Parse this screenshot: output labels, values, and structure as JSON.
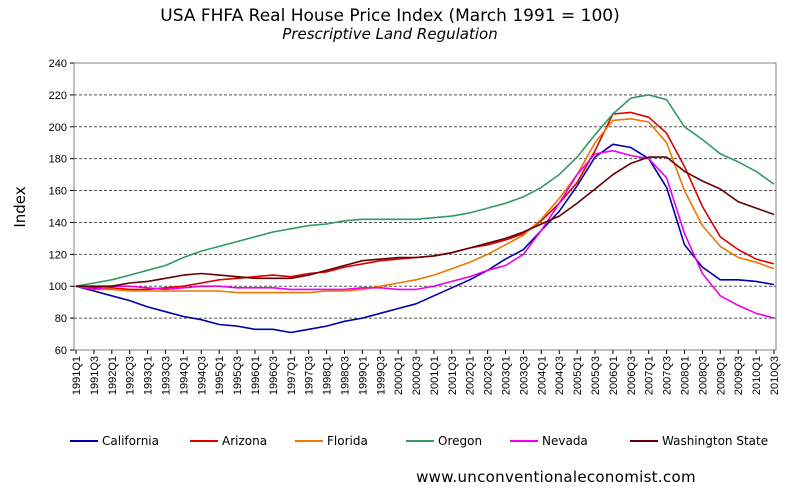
{
  "website": "www.unconventionaleconomist.com",
  "chart_data": {
    "type": "line",
    "title": "USA FHFA Real House Price Index (March 1991 = 100)",
    "subtitle": "Prescriptive Land Regulation",
    "xlabel": "",
    "ylabel": "Index",
    "ylim": [
      60,
      240
    ],
    "yticks": [
      60,
      80,
      100,
      120,
      140,
      160,
      180,
      200,
      220,
      240
    ],
    "grid": "horizontal dashed",
    "legend_position": "bottom",
    "x": [
      "1991Q1",
      "1991Q3",
      "1992Q1",
      "1992Q3",
      "1993Q1",
      "1993Q3",
      "1994Q1",
      "1994Q3",
      "1995Q1",
      "1995Q3",
      "1996Q1",
      "1996Q3",
      "1997Q1",
      "1997Q3",
      "1998Q1",
      "1998Q3",
      "1999Q1",
      "1999Q3",
      "2000Q1",
      "2000Q3",
      "2001Q1",
      "2001Q3",
      "2002Q1",
      "2002Q3",
      "2003Q1",
      "2003Q3",
      "2004Q1",
      "2004Q3",
      "2005Q1",
      "2005Q3",
      "2006Q1",
      "2006Q3",
      "2007Q1",
      "2007Q3",
      "2008Q1",
      "2008Q3",
      "2009Q1",
      "2009Q3",
      "2010Q1",
      "2010Q3"
    ],
    "series": [
      {
        "name": "California",
        "color": "#0000aa",
        "values": [
          100,
          97,
          94,
          91,
          87,
          84,
          81,
          79,
          76,
          75,
          73,
          73,
          71,
          73,
          75,
          78,
          80,
          83,
          86,
          89,
          94,
          99,
          104,
          110,
          117,
          123,
          135,
          147,
          163,
          181,
          189,
          187,
          180,
          162,
          126,
          112,
          104,
          104,
          103,
          101
        ]
      },
      {
        "name": "Arizona",
        "color": "#dd0000",
        "values": [
          100,
          99,
          99,
          98,
          98,
          99,
          100,
          102,
          104,
          105,
          106,
          107,
          106,
          108,
          109,
          112,
          114,
          116,
          117,
          118,
          119,
          121,
          124,
          126,
          129,
          133,
          141,
          152,
          165,
          185,
          208,
          209,
          206,
          196,
          175,
          150,
          131,
          123,
          117,
          114
        ]
      },
      {
        "name": "Florida",
        "color": "#ee7700",
        "values": [
          100,
          98,
          98,
          97,
          97,
          97,
          97,
          97,
          97,
          96,
          96,
          96,
          96,
          96,
          97,
          97,
          98,
          100,
          102,
          104,
          107,
          111,
          115,
          120,
          126,
          132,
          142,
          155,
          170,
          190,
          204,
          205,
          203,
          190,
          160,
          138,
          125,
          118,
          115,
          111
        ]
      },
      {
        "name": "Oregon",
        "color": "#339966",
        "values": [
          100,
          102,
          104,
          107,
          110,
          113,
          118,
          122,
          125,
          128,
          131,
          134,
          136,
          138,
          139,
          141,
          142,
          142,
          142,
          142,
          143,
          144,
          146,
          149,
          152,
          156,
          162,
          170,
          181,
          195,
          208,
          218,
          220,
          217,
          200,
          192,
          183,
          178,
          172,
          164
        ]
      },
      {
        "name": "Nevada",
        "color": "#ee00ee",
        "values": [
          100,
          98,
          100,
          100,
          99,
          98,
          99,
          100,
          100,
          99,
          99,
          99,
          98,
          98,
          98,
          98,
          99,
          99,
          98,
          98,
          100,
          103,
          106,
          110,
          113,
          120,
          135,
          152,
          170,
          183,
          185,
          182,
          180,
          168,
          133,
          108,
          94,
          88,
          83,
          80
        ]
      },
      {
        "name": "Washington State",
        "color": "#660000",
        "values": [
          100,
          100,
          100,
          102,
          103,
          105,
          107,
          108,
          107,
          106,
          105,
          105,
          105,
          107,
          110,
          113,
          116,
          117,
          118,
          118,
          119,
          121,
          124,
          127,
          130,
          134,
          139,
          144,
          152,
          161,
          170,
          177,
          181,
          181,
          172,
          166,
          161,
          153,
          149,
          145
        ]
      }
    ]
  }
}
